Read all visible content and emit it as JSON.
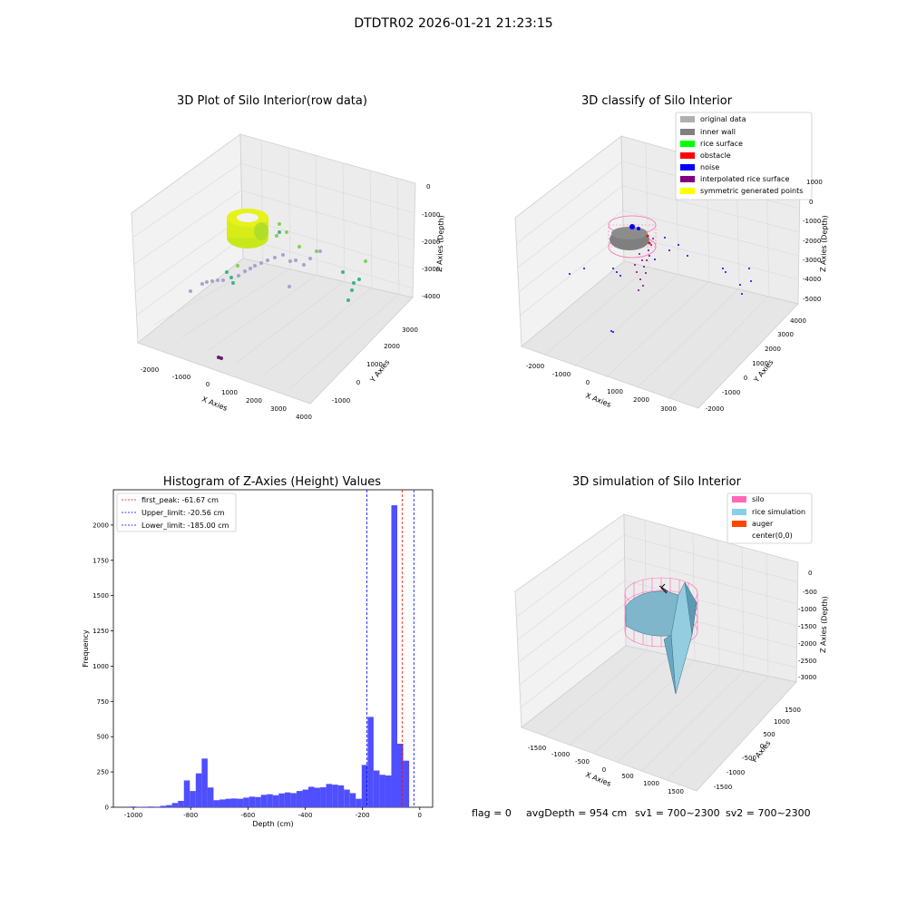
{
  "figure": {
    "suptitle": "DTDTR02 2026-01-21 21:23:15",
    "footer": {
      "flag": "flag = 0",
      "avg_depth": "avgDepth = 954 cm",
      "sv1": "sv1 = 700~2300",
      "sv2": "sv2 = 700~2300"
    }
  },
  "panel1": {
    "title": "3D Plot of Silo Interior(row data)",
    "xlabel": "X Axies",
    "ylabel": "Y Axies",
    "zlabel": "Z Axies (Depth)",
    "x_ticks": [
      "-2000",
      "-1000",
      "0",
      "1000",
      "2000",
      "3000",
      "4000"
    ],
    "y_ticks": [
      "-1000",
      "0",
      "1000",
      "2000",
      "3000"
    ],
    "z_ticks": [
      "0",
      "-1000",
      "-2000",
      "-3000",
      "-4000"
    ]
  },
  "panel2": {
    "title": "3D classify of Silo Interior",
    "xlabel": "X Axies",
    "ylabel": "Y Axies",
    "zlabel": "Z Axies (Depth)",
    "x_ticks": [
      "-2000",
      "-1000",
      "0",
      "1000",
      "2000",
      "3000"
    ],
    "y_ticks": [
      "-2000",
      "-1000",
      "0",
      "1000",
      "2000",
      "3000",
      "4000"
    ],
    "z_ticks": [
      "1000",
      "0",
      "-1000",
      "-2000",
      "-3000",
      "-4000",
      "-5000"
    ],
    "legend": [
      {
        "label": "original data",
        "color": "#b0b0b0"
      },
      {
        "label": "inner wall",
        "color": "#808080"
      },
      {
        "label": "rice surface",
        "color": "#00ff00"
      },
      {
        "label": "obstacle",
        "color": "#ff0000"
      },
      {
        "label": "noise",
        "color": "#0000ff"
      },
      {
        "label": "interpolated rice surface",
        "color": "#800080"
      },
      {
        "label": "symmetric generated points",
        "color": "#ffff00"
      }
    ]
  },
  "panel3": {
    "chart_data": {
      "type": "bar",
      "title": "Histogram of Z-Axies (Height) Values",
      "xlabel": "Depth (cm)",
      "ylabel": "Frequency",
      "xlim": [
        -1070,
        45
      ],
      "ylim": [
        0,
        2250
      ],
      "x_ticks": [
        -1000,
        -800,
        -600,
        -400,
        -200,
        0
      ],
      "y_ticks": [
        0,
        250,
        500,
        750,
        1000,
        1250,
        1500,
        1750,
        2000
      ],
      "bar_color": "#4f4fff",
      "bin_width": 20.7,
      "bin_starts": [
        -1010,
        -989.3,
        -968.6,
        -947.9,
        -927.2,
        -906.5,
        -885.8,
        -865.1,
        -844.4,
        -823.7,
        -803,
        -782.3,
        -761.6,
        -740.9,
        -720.2,
        -699.5,
        -678.8,
        -658.1,
        -637.4,
        -616.7,
        -596,
        -575.3,
        -554.6,
        -533.9,
        -513.2,
        -492.5,
        -471.8,
        -451.1,
        -430.4,
        -409.7,
        -389,
        -368.3,
        -347.6,
        -326.9,
        -306.2,
        -285.5,
        -264.8,
        -244.1,
        -223.4,
        -202.7,
        -182,
        -161.3,
        -140.6,
        -119.9,
        -99.2,
        -78.5,
        -57.8,
        -37.1,
        -16.4,
        4.3
      ],
      "counts": [
        5,
        3,
        2,
        5,
        4,
        10,
        15,
        30,
        45,
        190,
        115,
        240,
        345,
        140,
        50,
        55,
        60,
        62,
        60,
        68,
        75,
        72,
        88,
        92,
        85,
        98,
        105,
        100,
        115,
        125,
        145,
        138,
        142,
        165,
        160,
        155,
        125,
        100,
        60,
        300,
        640,
        260,
        230,
        225,
        2140,
        450,
        330,
        0,
        0,
        0
      ],
      "lines": [
        {
          "label": "first_peak: -61.67 cm",
          "x": -61.67,
          "color": "#ff0000"
        },
        {
          "label": "Upper_limit: -20.56 cm",
          "x": -20.56,
          "color": "#0000ff"
        },
        {
          "label": "Lower_limit: -185.00 cm",
          "x": -185.0,
          "color": "#0000ff"
        }
      ],
      "legend_position": "upper-left"
    }
  },
  "panel4": {
    "title": "3D simulation of Silo Interior",
    "xlabel": "X Axies",
    "ylabel": "Y Axies",
    "zlabel": "Z Axies (Depth)",
    "x_ticks": [
      "-1500",
      "-1000",
      "-500",
      "0",
      "500",
      "1000",
      "1500"
    ],
    "y_ticks": [
      "-1500",
      "-1000",
      "-500",
      "0",
      "500",
      "1000",
      "1500"
    ],
    "z_ticks": [
      "0",
      "-500",
      "-1000",
      "-1500",
      "-2000",
      "-2500",
      "-3000"
    ],
    "legend": [
      {
        "label": "silo",
        "color": "#ff69b4"
      },
      {
        "label": "rice simulation",
        "color": "#87ceeb"
      },
      {
        "label": "auger",
        "color": "#ff4500"
      },
      {
        "label": "center(0,0)",
        "color": "#000000"
      }
    ]
  }
}
